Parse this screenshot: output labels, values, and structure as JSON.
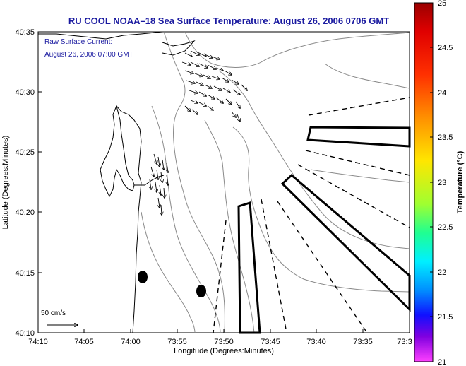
{
  "title": "RU COOL  NOAA–18  Sea Surface Temperature:  August 26, 2006 0706 GMT",
  "annotation": {
    "line1": "Raw Surface Current:",
    "line2": "August 26, 2006 07:00 GMT"
  },
  "axes": {
    "xlabel": "Longitude (Degrees:Minutes)",
    "ylabel": "Latitude (Degrees:Minutes)",
    "x_ticks": [
      "74:10",
      "74:05",
      "74:00",
      "73:55",
      "73:50",
      "73:45",
      "73:40",
      "73:35",
      "73:3"
    ],
    "y_ticks": [
      "40:35",
      "40:30",
      "40:25",
      "40:20",
      "40:15",
      "40:10"
    ]
  },
  "scale_label": "50 cm/s",
  "colorbar": {
    "label": "Temperature (°C)",
    "ticks": [
      "25",
      "24.5",
      "24",
      "23.5",
      "23",
      "22.5",
      "22",
      "21.5",
      "21"
    ],
    "colors": [
      "#b00000",
      "#ff2000",
      "#ff8c00",
      "#ffe000",
      "#90ff40",
      "#00ffd0",
      "#00b0ff",
      "#1020ff",
      "#a000e0",
      "#ff40ff"
    ]
  },
  "chart_data": {
    "type": "map",
    "x_range": [
      "74:10",
      "73:30"
    ],
    "y_range": [
      "40:10",
      "40:35"
    ],
    "colorbar_range": [
      21,
      25
    ]
  }
}
